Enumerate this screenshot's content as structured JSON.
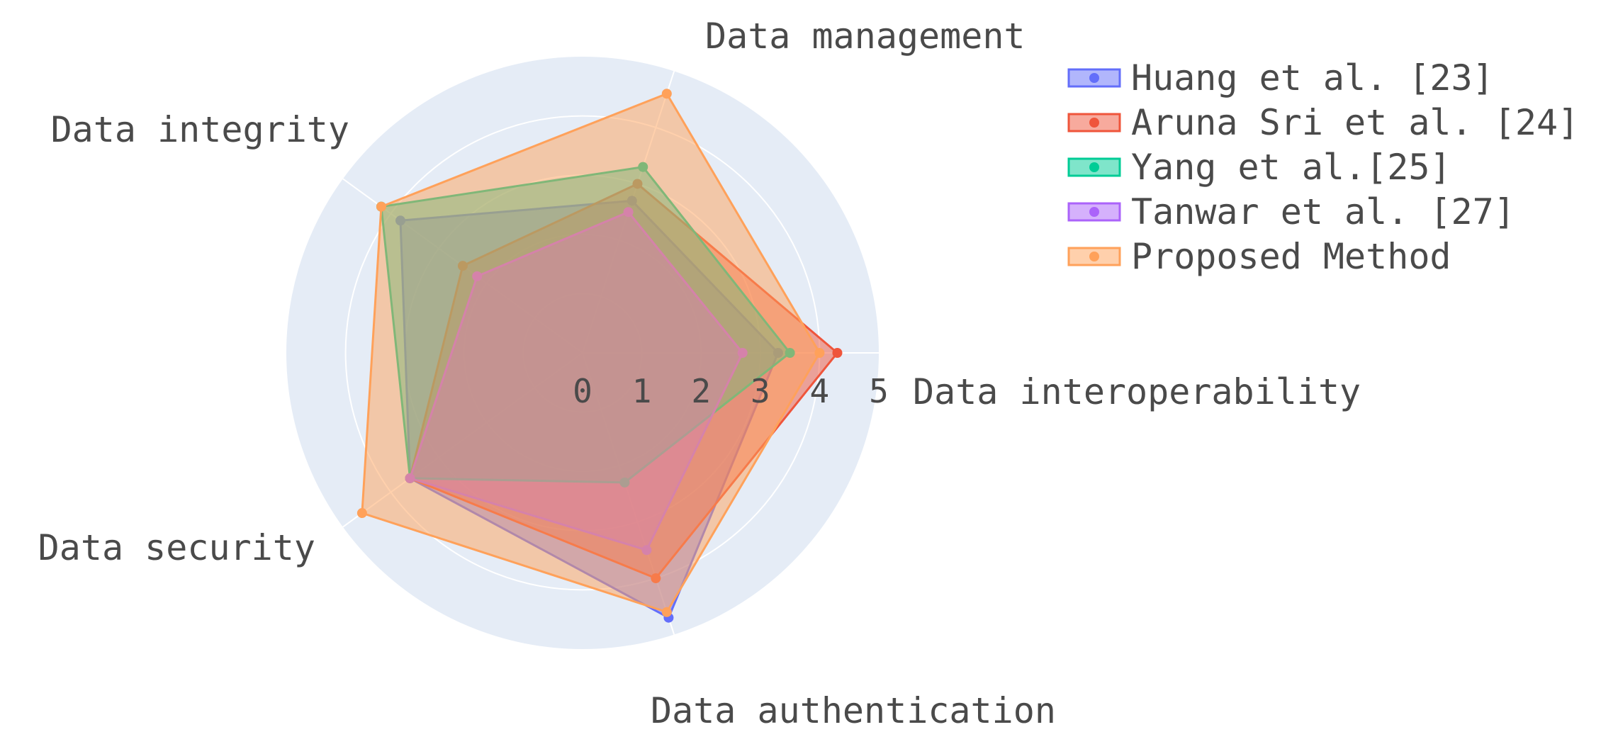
{
  "chart_data": {
    "type": "radar",
    "axes": [
      "Data interoperability",
      "Data management",
      "Data integrity",
      "Data security",
      "Data authentication"
    ],
    "radial_range": [
      0,
      5
    ],
    "radial_ticks": [
      "0",
      "1",
      "2",
      "3",
      "4",
      "5"
    ],
    "grid": true,
    "legend_position": "top-right",
    "series": [
      {
        "name": "Huang et al. [23]",
        "color": "#636efa",
        "values": [
          3.3,
          2.7,
          3.8,
          3.6,
          4.7
        ]
      },
      {
        "name": "Aruna Sri et al. [24]",
        "color": "#ef553b",
        "values": [
          4.3,
          3.0,
          2.5,
          3.6,
          4.0
        ]
      },
      {
        "name": "Yang et al.[25]",
        "color": "#00cc96",
        "values": [
          3.5,
          3.3,
          4.2,
          3.6,
          2.3
        ]
      },
      {
        "name": "Tanwar et al. [27]",
        "color": "#ab63fa",
        "values": [
          2.7,
          2.5,
          2.2,
          3.6,
          3.5
        ]
      },
      {
        "name": "Proposed Method",
        "color": "#ffa15a",
        "values": [
          4.0,
          4.6,
          4.2,
          4.6,
          4.6
        ]
      }
    ]
  },
  "colors": {
    "polar_bg": "#e5ecf6",
    "grid": "#ffffff"
  }
}
